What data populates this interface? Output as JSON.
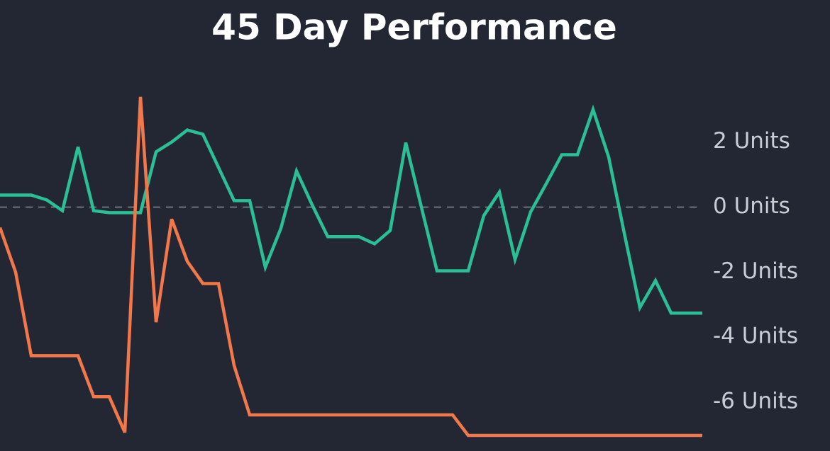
{
  "chart_data": {
    "type": "line",
    "title": "45 Day Performance",
    "categories": [
      null,
      null,
      null,
      null,
      null,
      null,
      null,
      null,
      null,
      null,
      null,
      null,
      null,
      null,
      null,
      null,
      null,
      null,
      null,
      null,
      null,
      null,
      null,
      null,
      null,
      null,
      null,
      null,
      null,
      null,
      null,
      null,
      null,
      null,
      null,
      null,
      null,
      null,
      null,
      null,
      null,
      null,
      null,
      null,
      null,
      null
    ],
    "series": [
      {
        "color": "#2bbf95",
        "values": [
          0.37,
          0.37,
          0.37,
          0.22,
          -0.11,
          1.85,
          -0.11,
          -0.17,
          -0.17,
          -0.17,
          1.7,
          2.0,
          2.37,
          2.24,
          1.22,
          0.2,
          0.2,
          -1.85,
          -0.65,
          1.11,
          0.07,
          -0.91,
          -0.91,
          -0.91,
          -1.13,
          -0.72,
          1.98,
          0,
          -1.96,
          -1.96,
          -1.96,
          -0.26,
          0.46,
          -1.61,
          -0.15,
          0.72,
          1.61,
          1.61,
          3.0,
          1.54,
          -0.8,
          -3.09,
          -2.26,
          -3.26,
          -3.26,
          -3.26
        ]
      },
      {
        "color": "#f2774a",
        "values": [
          -0.63,
          -2.0,
          -4.57,
          -4.57,
          -4.57,
          -4.57,
          -5.83,
          -5.83,
          -6.93,
          3.39,
          -3.54,
          -0.37,
          -1.67,
          -2.35,
          -2.35,
          -4.87,
          -6.39,
          -6.39,
          -6.39,
          -6.39,
          -6.39,
          -6.39,
          -6.39,
          -6.39,
          -6.39,
          -6.39,
          -6.39,
          -6.39,
          -6.39,
          -6.39,
          -7.02,
          -7.02,
          -7.02,
          -7.02,
          -7.02,
          -7.02,
          -7.02,
          -7.02,
          -7.02,
          -7.02,
          -7.02,
          -7.02,
          -7.02,
          -7.02,
          -7.02,
          -7.02
        ]
      }
    ],
    "ylim": [
      -7.5,
      4.3
    ],
    "yticks": [
      {
        "value": 2,
        "label": "2 Units"
      },
      {
        "value": 0,
        "label": "0 Units"
      },
      {
        "value": -2,
        "label": "-2 Units"
      },
      {
        "value": -4,
        "label": "-4 Units"
      },
      {
        "value": -6,
        "label": "-6 Units"
      }
    ],
    "grid": false
  }
}
